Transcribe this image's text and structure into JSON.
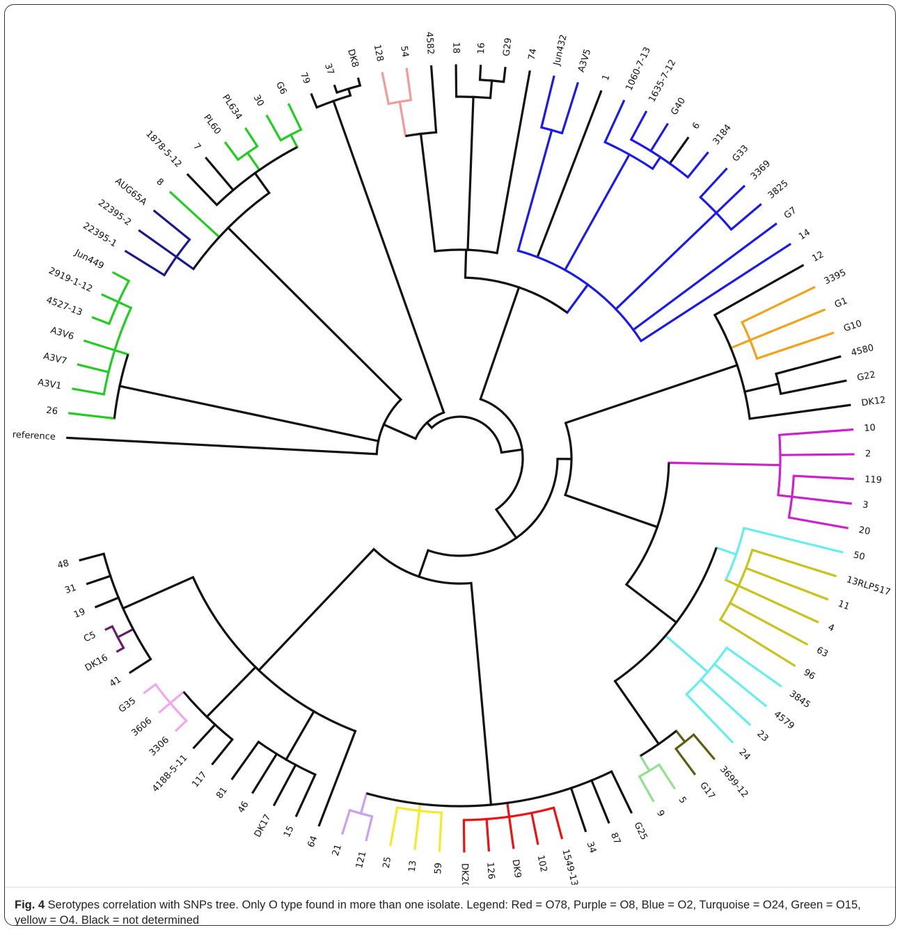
{
  "figure": {
    "caption_label": "Fig. 4",
    "caption_text": " Serotypes correlation with SNPs tree. Only O type found in more than one isolate. Legend: Red = O78, Purple = O8, Blue = O2, Turquoise = O24, Green = O15, yellow = O4. Black = not determined"
  },
  "colors": {
    "black": "#111111",
    "green": "#22cc22",
    "navy": "#1a1a8c",
    "blue": "#1a1aee",
    "red": "#ee1111",
    "yellow": "#f2ea2a",
    "lavender": "#c9a0f0",
    "pink": "#f2a6ee",
    "salmon": "#f29a96",
    "lightgreen": "#8ee28e",
    "olive": "#5e5c10",
    "cyan": "#66eeee",
    "mustard": "#c9c21a",
    "magenta": "#cc22cc",
    "orange": "#f2a21a",
    "darkpurple": "#6a1a6a"
  },
  "chart_data": {
    "type": "tree",
    "layout": "circular",
    "root": "reference",
    "leaves": [
      {
        "label": "reference",
        "color": "black"
      },
      {
        "label": "26",
        "color": "green"
      },
      {
        "label": "A3V1",
        "color": "green"
      },
      {
        "label": "A3V7",
        "color": "green"
      },
      {
        "label": "A3V6",
        "color": "green"
      },
      {
        "label": "4527-13",
        "color": "green"
      },
      {
        "label": "2919-1-12",
        "color": "green"
      },
      {
        "label": "Jun449",
        "color": "green"
      },
      {
        "label": "22395-1",
        "color": "navy"
      },
      {
        "label": "22395-2",
        "color": "navy"
      },
      {
        "label": "AUG65A",
        "color": "navy"
      },
      {
        "label": "8",
        "color": "green"
      },
      {
        "label": "1878-5-12",
        "color": "black"
      },
      {
        "label": "7",
        "color": "black"
      },
      {
        "label": "PL60",
        "color": "green"
      },
      {
        "label": "PL634",
        "color": "green"
      },
      {
        "label": "30",
        "color": "green"
      },
      {
        "label": "G6",
        "color": "green"
      },
      {
        "label": "79",
        "color": "black"
      },
      {
        "label": "37",
        "color": "black"
      },
      {
        "label": "DK8",
        "color": "black"
      },
      {
        "label": "128",
        "color": "salmon"
      },
      {
        "label": "54",
        "color": "salmon"
      },
      {
        "label": "4582",
        "color": "black"
      },
      {
        "label": "18",
        "color": "black"
      },
      {
        "label": "16",
        "color": "black"
      },
      {
        "label": "G29",
        "color": "black"
      },
      {
        "label": "74",
        "color": "black"
      },
      {
        "label": "Jun432",
        "color": "blue"
      },
      {
        "label": "A3V5",
        "color": "blue"
      },
      {
        "label": "1",
        "color": "black"
      },
      {
        "label": "1060-7-13",
        "color": "blue"
      },
      {
        "label": "1635-7-12",
        "color": "blue"
      },
      {
        "label": "G40",
        "color": "blue"
      },
      {
        "label": "6",
        "color": "black"
      },
      {
        "label": "3184",
        "color": "blue"
      },
      {
        "label": "G33",
        "color": "blue"
      },
      {
        "label": "3369",
        "color": "blue"
      },
      {
        "label": "3825",
        "color": "blue"
      },
      {
        "label": "G7",
        "color": "blue"
      },
      {
        "label": "14",
        "color": "blue"
      },
      {
        "label": "12",
        "color": "black"
      },
      {
        "label": "3395",
        "color": "orange"
      },
      {
        "label": "G1",
        "color": "orange"
      },
      {
        "label": "G10",
        "color": "orange"
      },
      {
        "label": "4580",
        "color": "black"
      },
      {
        "label": "G22",
        "color": "black"
      },
      {
        "label": "DK12",
        "color": "black"
      },
      {
        "label": "10",
        "color": "magenta"
      },
      {
        "label": "2",
        "color": "magenta"
      },
      {
        "label": "119",
        "color": "magenta"
      },
      {
        "label": "3",
        "color": "magenta"
      },
      {
        "label": "20",
        "color": "magenta"
      },
      {
        "label": "50",
        "color": "cyan"
      },
      {
        "label": "13RLP517",
        "color": "mustard"
      },
      {
        "label": "11",
        "color": "mustard"
      },
      {
        "label": "4",
        "color": "mustard"
      },
      {
        "label": "63",
        "color": "mustard"
      },
      {
        "label": "96",
        "color": "mustard"
      },
      {
        "label": "3845",
        "color": "cyan"
      },
      {
        "label": "4579",
        "color": "cyan"
      },
      {
        "label": "23",
        "color": "cyan"
      },
      {
        "label": "24",
        "color": "cyan"
      },
      {
        "label": "3699-12",
        "color": "olive"
      },
      {
        "label": "G17",
        "color": "olive"
      },
      {
        "label": "5",
        "color": "lightgreen"
      },
      {
        "label": "9",
        "color": "lightgreen"
      },
      {
        "label": "G25",
        "color": "black"
      },
      {
        "label": "87",
        "color": "black"
      },
      {
        "label": "34",
        "color": "black"
      },
      {
        "label": "1549-13",
        "color": "red"
      },
      {
        "label": "102",
        "color": "red"
      },
      {
        "label": "DK9",
        "color": "red"
      },
      {
        "label": "126",
        "color": "red"
      },
      {
        "label": "DK20",
        "color": "red"
      },
      {
        "label": "59",
        "color": "yellow"
      },
      {
        "label": "13",
        "color": "yellow"
      },
      {
        "label": "25",
        "color": "yellow"
      },
      {
        "label": "121",
        "color": "lavender"
      },
      {
        "label": "21",
        "color": "lavender"
      },
      {
        "label": "64",
        "color": "black"
      },
      {
        "label": "15",
        "color": "black"
      },
      {
        "label": "DK17",
        "color": "black"
      },
      {
        "label": "46",
        "color": "black"
      },
      {
        "label": "81",
        "color": "black"
      },
      {
        "label": "117",
        "color": "black"
      },
      {
        "label": "4188-5-11",
        "color": "black"
      },
      {
        "label": "3306",
        "color": "pink"
      },
      {
        "label": "3606",
        "color": "pink"
      },
      {
        "label": "G35",
        "color": "pink"
      },
      {
        "label": "41",
        "color": "black"
      },
      {
        "label": "DK16",
        "color": "darkpurple"
      },
      {
        "label": "C5",
        "color": "darkpurple"
      },
      {
        "label": "19",
        "color": "black"
      },
      {
        "label": "31",
        "color": "black"
      },
      {
        "label": "48",
        "color": "black"
      }
    ],
    "legend": [
      {
        "color": "Red",
        "serotype": "O78"
      },
      {
        "color": "Purple",
        "serotype": "O8"
      },
      {
        "color": "Blue",
        "serotype": "O2"
      },
      {
        "color": "Turquoise",
        "serotype": "O24"
      },
      {
        "color": "Green",
        "serotype": "O15"
      },
      {
        "color": "yellow",
        "serotype": "O4"
      },
      {
        "color": "Black",
        "serotype": "not determined"
      }
    ]
  }
}
